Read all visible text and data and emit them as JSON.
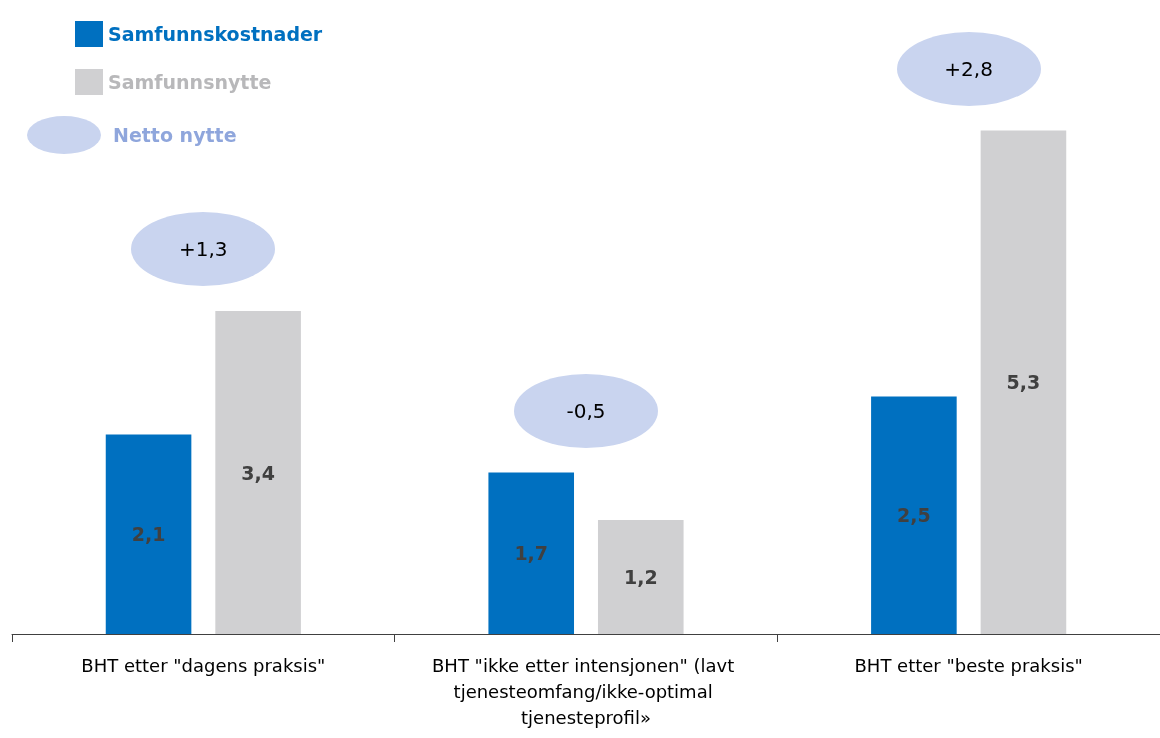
{
  "chart_data": {
    "type": "bar",
    "categories": [
      "BHT etter \"dagens praksis\"",
      "BHT \"ikke etter intensjonen\" (lavt tjenesteomfang/ikke-optimal tjenesteprofil»",
      "BHT etter \"beste praksis\""
    ],
    "series": [
      {
        "name": "Samfunnskostnader",
        "color": "#0070c0",
        "values": [
          2.1,
          1.7,
          2.5
        ],
        "value_labels": [
          "2,1",
          "1,7",
          "2,5"
        ]
      },
      {
        "name": "Samfunnsnytte",
        "color": "#d0d0d2",
        "values": [
          3.4,
          1.2,
          5.3
        ],
        "value_labels": [
          "3,4",
          "1,2",
          "5,3"
        ]
      }
    ],
    "tick_labels": "x",
    "grid": false,
    "legend": "top left",
    "annotations": [
      "+1,3",
      "-0,5",
      "+2,8",
      "Netto nytte"
    ]
  }
}
